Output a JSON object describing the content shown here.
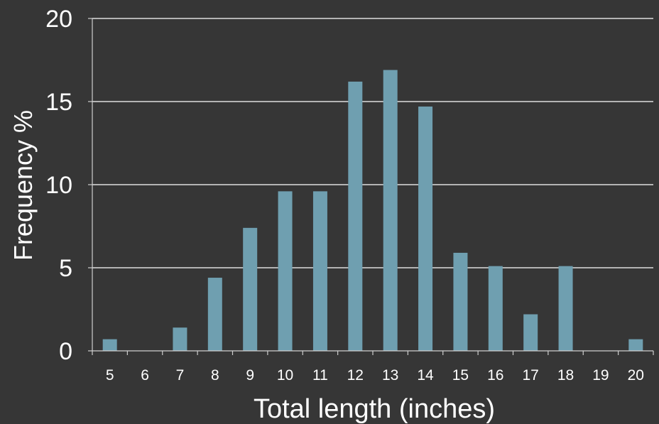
{
  "chart_data": {
    "type": "bar",
    "title": "",
    "xlabel": "Total length (inches)",
    "ylabel": "Frequency %",
    "categories": [
      "5",
      "6",
      "7",
      "8",
      "9",
      "10",
      "11",
      "12",
      "13",
      "14",
      "15",
      "16",
      "17",
      "18",
      "19",
      "20"
    ],
    "values": [
      0.7,
      0,
      1.4,
      4.4,
      7.4,
      9.6,
      9.6,
      16.2,
      16.9,
      14.7,
      5.9,
      5.1,
      2.2,
      5.1,
      0,
      0.7
    ],
    "ylim": [
      0,
      20
    ],
    "yticks": [
      0,
      5,
      10,
      15,
      20
    ],
    "grid": true,
    "legend": "none",
    "colors": {
      "background": "#363636",
      "bar": "#6f9fb0",
      "grid": "#ffffff",
      "axis": "#cfcfcf",
      "text": "#ffffff"
    }
  }
}
